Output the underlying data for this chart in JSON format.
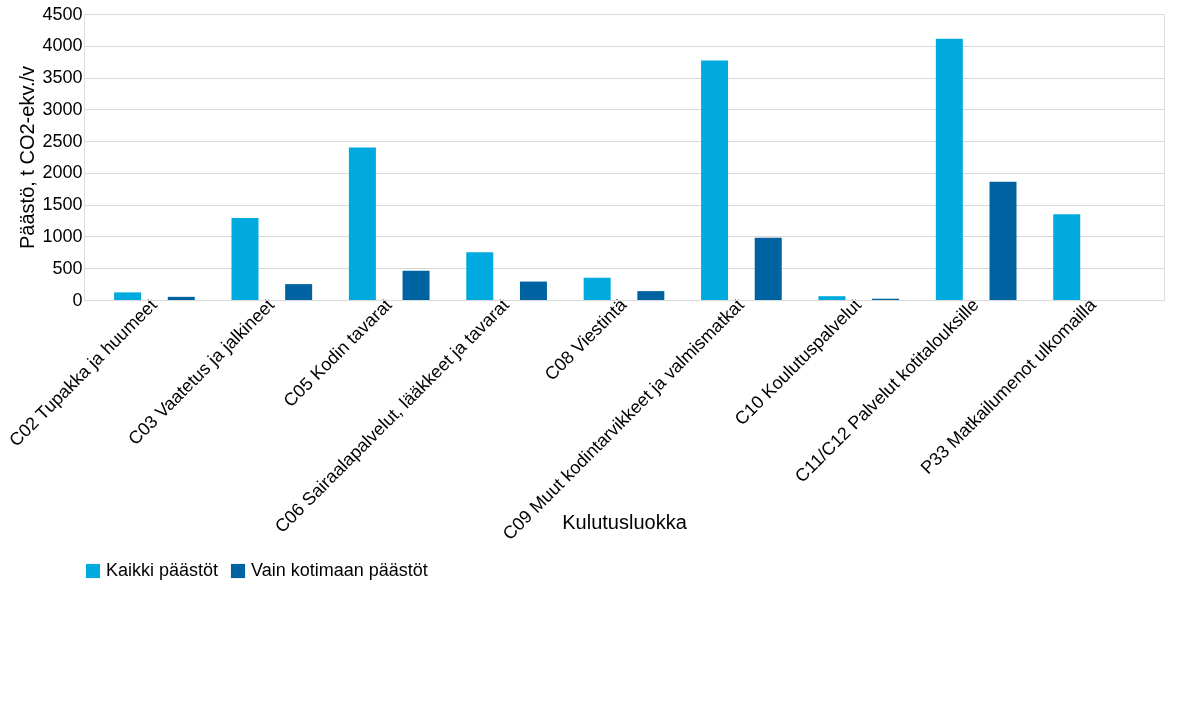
{
  "chart_data": {
    "type": "bar",
    "xlabel": "Kulutusluokka",
    "ylabel": "Päästö, t CO2-ekv./v",
    "categories": [
      "C02 Tupakka ja huumeet",
      "C03 Vaatetus ja jalkineet",
      "C05 Kodin tavarat",
      "C06  Sairaalapalvelut, lääkkeet ja tavarat",
      "C08 Viestintä",
      "C09 Muut kodintarvikkeet ja valmismatkat",
      "C10 Koulutuspalvelut",
      "C11/C12 Palvelut kotitalouksille",
      "P33 Matkailumenot ulkomailla"
    ],
    "series": [
      {
        "name": "Kaikki päästöt",
        "color": "#00aadf",
        "values": [
          120,
          1290,
          2400,
          750,
          350,
          3770,
          60,
          4110,
          1350
        ]
      },
      {
        "name": "Vain kotimaan päästöt",
        "color": "#0063a1",
        "values": [
          50,
          250,
          460,
          290,
          140,
          980,
          20,
          1860,
          null
        ]
      }
    ],
    "ylim": [
      0,
      4500
    ],
    "yticks": [
      0,
      500,
      1000,
      1500,
      2000,
      2500,
      3000,
      3500,
      4000,
      4500
    ],
    "grid": "y",
    "legend": "bottom"
  }
}
